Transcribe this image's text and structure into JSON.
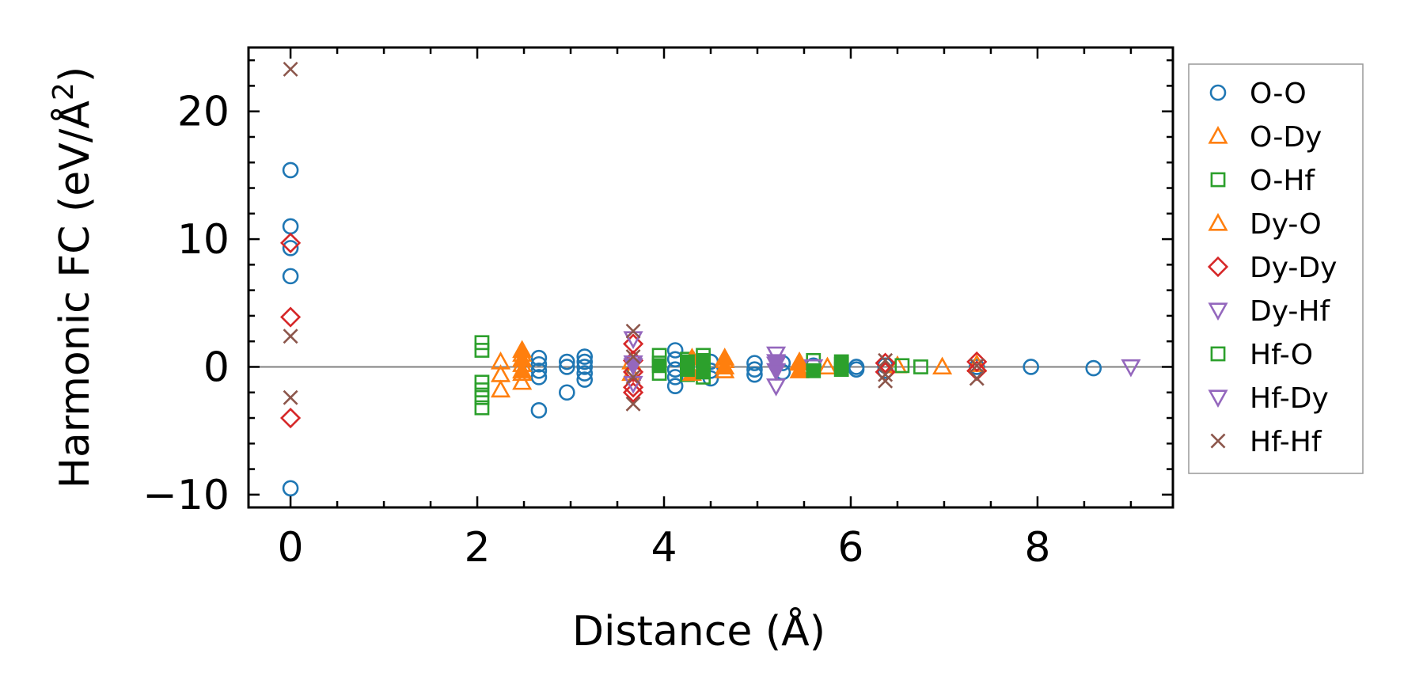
{
  "chart_data": {
    "type": "scatter",
    "xlabel": "Distance (Å)",
    "ylabel_main": "Harmonic FC (eV/Å",
    "ylabel_sup": "2",
    "ylabel_close": ")",
    "xlim": [
      -0.45,
      9.45
    ],
    "ylim": [
      -11.0,
      25.0
    ],
    "xticks": [
      0,
      2,
      4,
      6,
      8
    ],
    "xtick_labels": [
      "0",
      "2",
      "4",
      "6",
      "8"
    ],
    "yticks": [
      -10,
      0,
      10,
      20
    ],
    "ytick_labels": [
      "−10",
      "0",
      "10",
      "20"
    ],
    "x_minor_step": 0.5,
    "y_minor_step": 2,
    "grid": false,
    "zero_line": true,
    "legend_position": "outside right",
    "series": [
      {
        "name": "O-O",
        "marker": "circle",
        "filled": false,
        "color": "#1f77b4",
        "points": [
          [
            0,
            15.4
          ],
          [
            0,
            11.0
          ],
          [
            0,
            9.3
          ],
          [
            0,
            7.1
          ],
          [
            0,
            -9.5
          ],
          [
            2.66,
            0.7
          ],
          [
            2.66,
            0.2
          ],
          [
            2.66,
            -0.3
          ],
          [
            2.66,
            -0.8
          ],
          [
            2.66,
            -3.4
          ],
          [
            2.96,
            0.4
          ],
          [
            2.96,
            0.0
          ],
          [
            2.96,
            -2.0
          ],
          [
            3.15,
            0.8
          ],
          [
            3.15,
            0.4
          ],
          [
            3.15,
            0.0
          ],
          [
            3.15,
            -0.5
          ],
          [
            3.15,
            -1.0
          ],
          [
            4.12,
            1.3
          ],
          [
            4.12,
            0.6
          ],
          [
            4.12,
            -0.2
          ],
          [
            4.12,
            -0.8
          ],
          [
            4.12,
            -1.5
          ],
          [
            4.5,
            0.4
          ],
          [
            4.5,
            -0.3
          ],
          [
            4.5,
            -0.9
          ],
          [
            4.97,
            0.3
          ],
          [
            4.97,
            -0.2
          ],
          [
            4.97,
            -0.6
          ],
          [
            5.27,
            0.3
          ],
          [
            5.27,
            -0.4
          ],
          [
            5.6,
            0.1
          ],
          [
            6.06,
            0.0
          ],
          [
            6.06,
            -0.2
          ],
          [
            6.37,
            0.1
          ],
          [
            6.37,
            -0.3
          ],
          [
            7.35,
            0.0
          ],
          [
            7.93,
            0.0
          ],
          [
            8.6,
            -0.1
          ]
        ]
      },
      {
        "name": "O-Dy",
        "marker": "triangle-up",
        "filled": false,
        "color": "#ff7f0e",
        "points": [
          [
            2.25,
            0.4
          ],
          [
            2.25,
            -0.6
          ],
          [
            2.25,
            -1.8
          ],
          [
            2.48,
            1.0
          ],
          [
            2.48,
            0.2
          ],
          [
            2.48,
            -0.5
          ],
          [
            2.48,
            -1.2
          ],
          [
            3.65,
            0.4
          ],
          [
            3.65,
            -0.5
          ],
          [
            4.3,
            0.2
          ],
          [
            4.65,
            0.5
          ],
          [
            4.65,
            -0.3
          ],
          [
            5.45,
            0.3
          ],
          [
            5.75,
            0.0
          ],
          [
            6.5,
            0.1
          ],
          [
            6.98,
            0.0
          ],
          [
            7.35,
            0.2
          ]
        ]
      },
      {
        "name": "O-Hf",
        "marker": "square",
        "filled": false,
        "color": "#2ca02c",
        "points": [
          [
            2.05,
            1.9
          ],
          [
            2.05,
            1.3
          ],
          [
            2.05,
            -1.2
          ],
          [
            2.05,
            -1.8
          ],
          [
            2.05,
            -2.4
          ],
          [
            2.05,
            -3.2
          ],
          [
            3.95,
            0.9
          ],
          [
            3.95,
            0.3
          ],
          [
            3.95,
            -0.5
          ],
          [
            4.25,
            0.6
          ],
          [
            4.25,
            -0.6
          ],
          [
            4.42,
            0.9
          ],
          [
            4.42,
            -0.8
          ],
          [
            5.6,
            0.5
          ],
          [
            5.9,
            0.2
          ],
          [
            6.55,
            0.1
          ],
          [
            6.75,
            0.0
          ]
        ]
      },
      {
        "name": "Dy-O",
        "marker": "triangle-up",
        "filled": true,
        "color": "#ff7f0e",
        "points": [
          [
            2.48,
            1.3
          ],
          [
            2.48,
            0.6
          ],
          [
            2.48,
            -0.3
          ],
          [
            4.3,
            0.7
          ],
          [
            4.3,
            -0.5
          ],
          [
            4.65,
            0.7
          ],
          [
            4.65,
            0.0
          ],
          [
            5.45,
            0.4
          ],
          [
            5.45,
            -0.3
          ]
        ]
      },
      {
        "name": "Dy-Dy",
        "marker": "diamond",
        "filled": false,
        "color": "#d62728",
        "points": [
          [
            0,
            9.7
          ],
          [
            0,
            3.9
          ],
          [
            0,
            -4.0
          ],
          [
            3.67,
            1.8
          ],
          [
            3.67,
            0.5
          ],
          [
            3.67,
            -0.4
          ],
          [
            3.67,
            -1.6
          ],
          [
            3.67,
            -2.0
          ],
          [
            6.37,
            0.3
          ],
          [
            6.37,
            -0.4
          ],
          [
            7.35,
            0.4
          ],
          [
            7.35,
            -0.3
          ]
        ]
      },
      {
        "name": "Dy-Hf",
        "marker": "triangle-down",
        "filled": false,
        "color": "#9467bd",
        "points": [
          [
            3.67,
            2.2
          ],
          [
            3.67,
            0.3
          ],
          [
            3.67,
            -1.3
          ],
          [
            5.2,
            1.0
          ],
          [
            5.2,
            0.2
          ],
          [
            5.2,
            -1.5
          ],
          [
            5.6,
            0.0
          ],
          [
            9.0,
            0.0
          ]
        ]
      },
      {
        "name": "Hf-O",
        "marker": "square",
        "filled": true,
        "color": "#2ca02c",
        "points": [
          [
            3.95,
            0.1
          ],
          [
            4.25,
            0.4
          ],
          [
            4.25,
            -0.2
          ],
          [
            4.42,
            0.5
          ],
          [
            4.42,
            -0.4
          ],
          [
            5.6,
            -0.3
          ],
          [
            5.9,
            0.4
          ],
          [
            5.9,
            -0.2
          ]
        ]
      },
      {
        "name": "Hf-Dy",
        "marker": "triangle-down",
        "filled": true,
        "color": "#9467bd",
        "points": [
          [
            3.67,
            0.1
          ],
          [
            5.2,
            0.4
          ],
          [
            5.2,
            -0.3
          ]
        ]
      },
      {
        "name": "Hf-Hf",
        "marker": "x",
        "filled": false,
        "color": "#8c564b",
        "points": [
          [
            0,
            23.3
          ],
          [
            0,
            2.4
          ],
          [
            0,
            -2.4
          ],
          [
            3.67,
            2.8
          ],
          [
            3.67,
            0.8
          ],
          [
            3.67,
            -0.8
          ],
          [
            3.67,
            -2.9
          ],
          [
            6.37,
            0.5
          ],
          [
            6.37,
            -0.6
          ],
          [
            6.37,
            -1.1
          ],
          [
            7.35,
            0.1
          ],
          [
            7.35,
            -0.9
          ]
        ]
      }
    ]
  }
}
